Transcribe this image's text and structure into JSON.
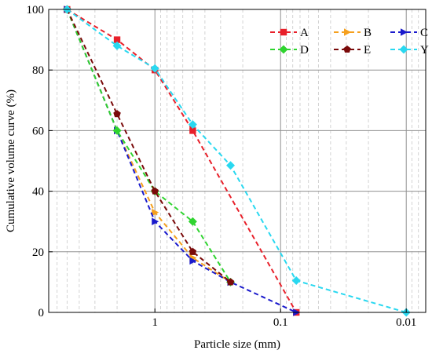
{
  "chart_data": {
    "type": "line",
    "x_scale": "log",
    "x_reversed": true,
    "xlabel": "Particle size (mm)",
    "ylabel": "Cumulative volume curve (%)",
    "xlim": [
      7,
      0.007
    ],
    "ylim": [
      0,
      100
    ],
    "x_ticks": [
      1,
      0.1,
      0.01
    ],
    "x_tick_labels": [
      "1",
      "0.1",
      "0.01"
    ],
    "y_ticks": [
      0,
      20,
      40,
      60,
      80,
      100
    ],
    "y_tick_labels": [
      "0",
      "20",
      "40",
      "60",
      "80",
      "100"
    ],
    "grid": true,
    "legend": "top-right",
    "series": [
      {
        "name": "A",
        "color": "#e8202a",
        "marker": "square",
        "x": [
          5,
          2,
          1,
          0.5,
          0.075
        ],
        "y": [
          100,
          90,
          80,
          60,
          0
        ]
      },
      {
        "name": "B",
        "color": "#f5a01e",
        "marker": "triangle-right",
        "x": [
          5,
          2,
          1,
          0.5,
          0.25
        ],
        "y": [
          100,
          60,
          33,
          18,
          10
        ]
      },
      {
        "name": "C",
        "color": "#1a1acc",
        "marker": "triangle-right",
        "x": [
          5,
          2,
          1,
          0.5,
          0.25,
          0.075
        ],
        "y": [
          100,
          60,
          30,
          17,
          10,
          0
        ]
      },
      {
        "name": "D",
        "color": "#2fd42f",
        "marker": "diamond",
        "x": [
          5,
          2,
          1,
          0.5,
          0.25
        ],
        "y": [
          100,
          60,
          40,
          30,
          10
        ]
      },
      {
        "name": "E",
        "color": "#7a0a0a",
        "marker": "pentagon",
        "x": [
          5,
          2,
          1,
          0.5,
          0.25
        ],
        "y": [
          100,
          65.5,
          40,
          20,
          10
        ]
      },
      {
        "name": "Y",
        "color": "#29d8f0",
        "marker": "diamond",
        "x": [
          5,
          2,
          1,
          0.5,
          0.25,
          0.075,
          0.01
        ],
        "y": [
          100,
          88,
          80.5,
          62,
          48.5,
          10.5,
          0
        ]
      }
    ]
  }
}
